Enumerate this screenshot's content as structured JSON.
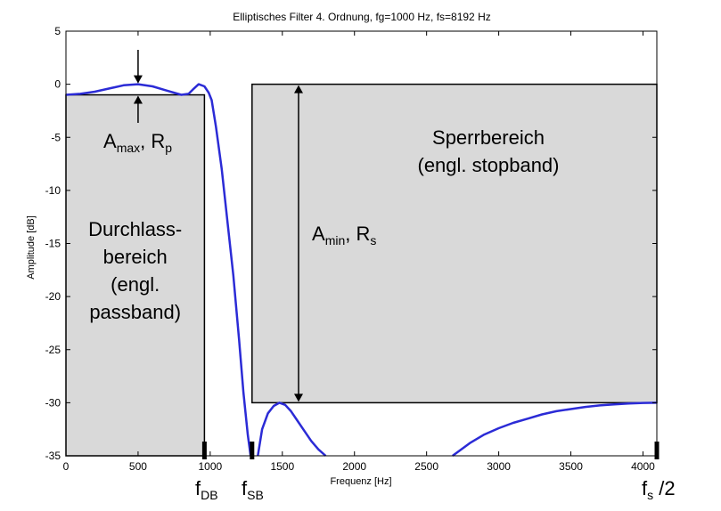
{
  "chart_data": {
    "type": "line",
    "title": "Elliptisches Filter 4. Ordnung, fg=1000 Hz, fs=8192 Hz",
    "xlabel": "Frequenz [Hz]",
    "ylabel": "Amplitude [dB]",
    "xlim": [
      0,
      4096
    ],
    "ylim": [
      -35,
      5
    ],
    "xticks": [
      0,
      500,
      1000,
      1500,
      2000,
      2500,
      3000,
      3500,
      4000
    ],
    "yticks": [
      5,
      0,
      -5,
      -10,
      -15,
      -20,
      -25,
      -30,
      -35
    ],
    "grid": false,
    "series_color": "#2b2bd6",
    "series": [
      {
        "x": [
          0,
          100,
          200,
          300,
          400,
          500,
          600,
          700,
          800,
          850,
          880,
          920,
          960,
          990,
          1010,
          1040,
          1080,
          1120,
          1160,
          1200,
          1230,
          1260,
          1280
        ],
        "y": [
          -1.0,
          -0.9,
          -0.7,
          -0.4,
          -0.1,
          0.0,
          -0.2,
          -0.6,
          -1.0,
          -0.9,
          -0.5,
          0.0,
          -0.2,
          -0.8,
          -1.5,
          -4,
          -8,
          -13,
          -18,
          -24,
          -29,
          -33,
          -35
        ]
      },
      {
        "x": [
          1330,
          1360,
          1400,
          1440,
          1480,
          1520,
          1560,
          1600,
          1650,
          1700,
          1750,
          1800
        ],
        "y": [
          -35,
          -32.5,
          -31,
          -30.3,
          -30.0,
          -30.2,
          -30.8,
          -31.6,
          -32.6,
          -33.6,
          -34.4,
          -35
        ]
      },
      {
        "x": [
          2680,
          2800,
          2900,
          3000,
          3100,
          3200,
          3300,
          3400,
          3500,
          3600,
          3700,
          3800,
          3900,
          4000,
          4096
        ],
        "y": [
          -35,
          -33.8,
          -33.0,
          -32.4,
          -31.9,
          -31.5,
          -31.1,
          -30.8,
          -30.6,
          -30.4,
          -30.25,
          -30.15,
          -30.07,
          -30.02,
          -30.0
        ]
      }
    ],
    "regions": [
      {
        "name": "passband",
        "x0": 0,
        "x1": 960,
        "y0": -35,
        "y1": -1.0,
        "text_lines": [
          "Durchlass-",
          "bereich",
          "(engl.",
          "passband)"
        ]
      },
      {
        "name": "stopband",
        "x0": 1290,
        "x1": 4096,
        "y0": -30,
        "y1": 0,
        "text_lines": [
          "Sperrbereich",
          "(engl. stopband)"
        ]
      }
    ],
    "region_fill": "#d9d9d9",
    "annotations": {
      "amax_main": "A",
      "amax_sub": "max",
      "amax_sep": ", R",
      "amax_sub2": "p",
      "amin_main": "A",
      "amin_sub": "min",
      "amin_sep": ", R",
      "amin_sub2": "s",
      "fdb_main": "f",
      "fdb_sub": "DB",
      "fsb_main": "f",
      "fsb_sub": "SB",
      "fs_main": "f",
      "fs_sub": "s",
      "fs_suffix": " /2"
    },
    "markers": [
      {
        "name": "fdb-marker",
        "x": 960
      },
      {
        "name": "fsb-marker",
        "x": 1290
      },
      {
        "name": "fs-half-marker",
        "x": 4096
      }
    ]
  }
}
